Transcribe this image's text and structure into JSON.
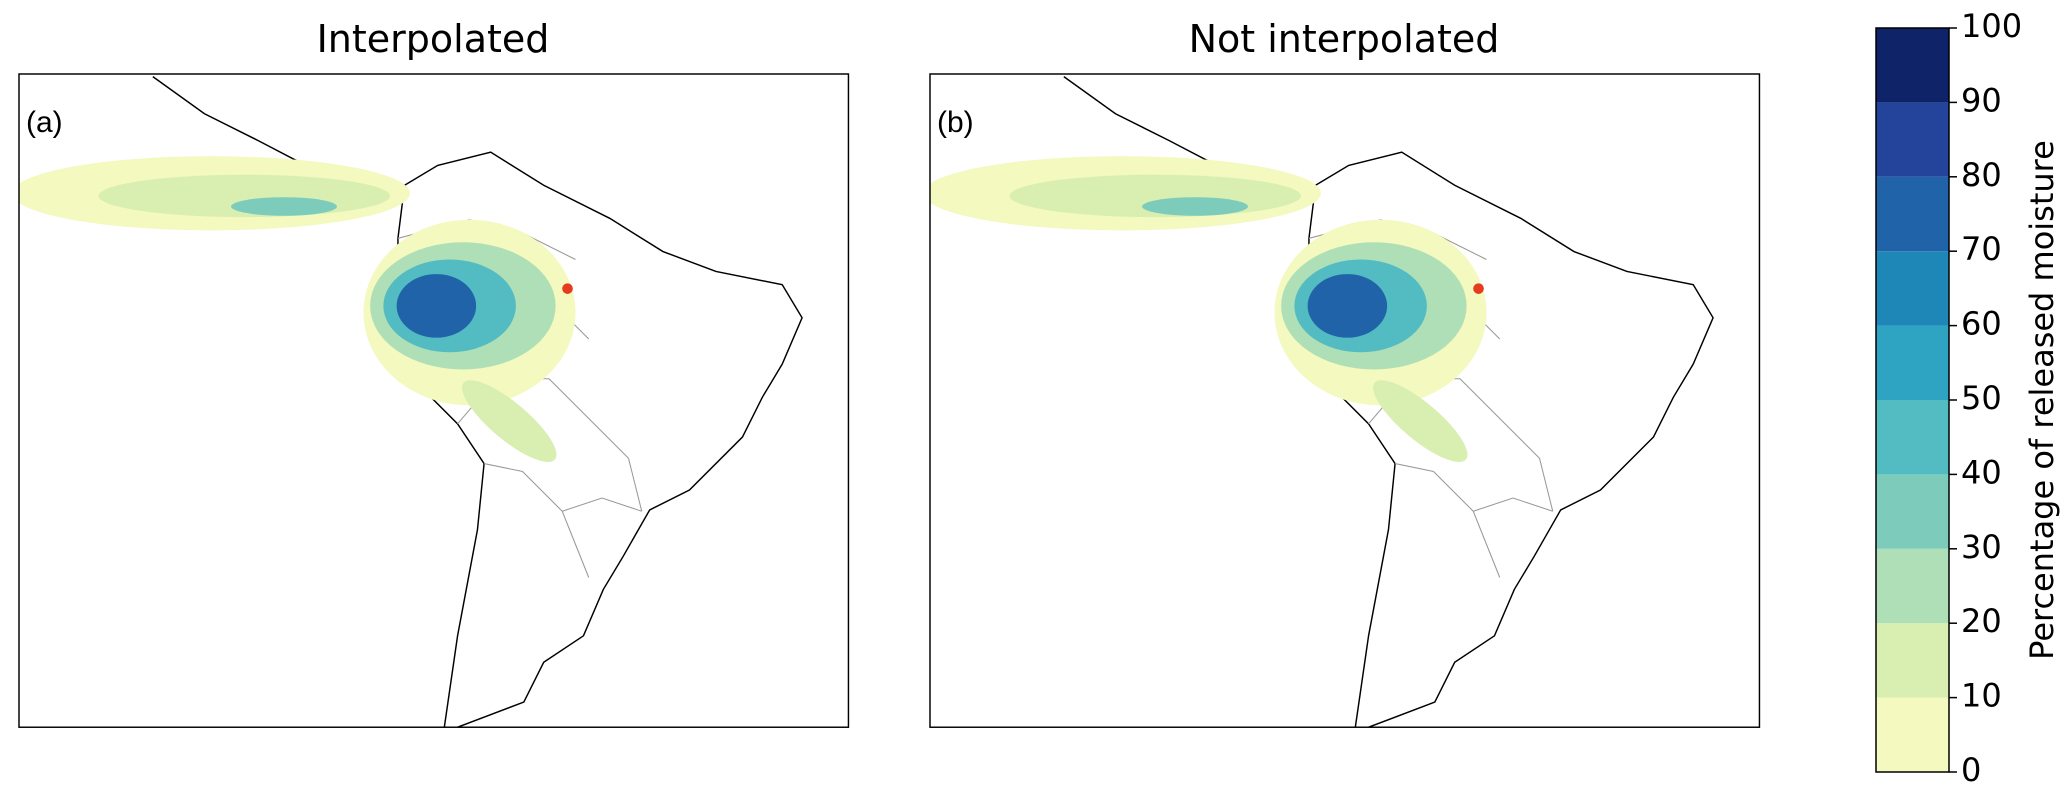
{
  "panels": [
    {
      "title": "Interpolated",
      "label": "(a)"
    },
    {
      "title": "Not interpolated",
      "label": "(b)"
    }
  ],
  "colorbar": {
    "label": "Percentage of released moisture",
    "lim": [
      0,
      100
    ],
    "ticks": [
      0,
      10,
      20,
      30,
      40,
      50,
      60,
      70,
      80,
      90,
      100
    ],
    "colors": [
      "#f3f9bf",
      "#d9efb1",
      "#afdfb6",
      "#7dccbb",
      "#52bcc2",
      "#2fa4c2",
      "#1f86b8",
      "#2163a8",
      "#24439a",
      "#0f2468"
    ]
  }
}
